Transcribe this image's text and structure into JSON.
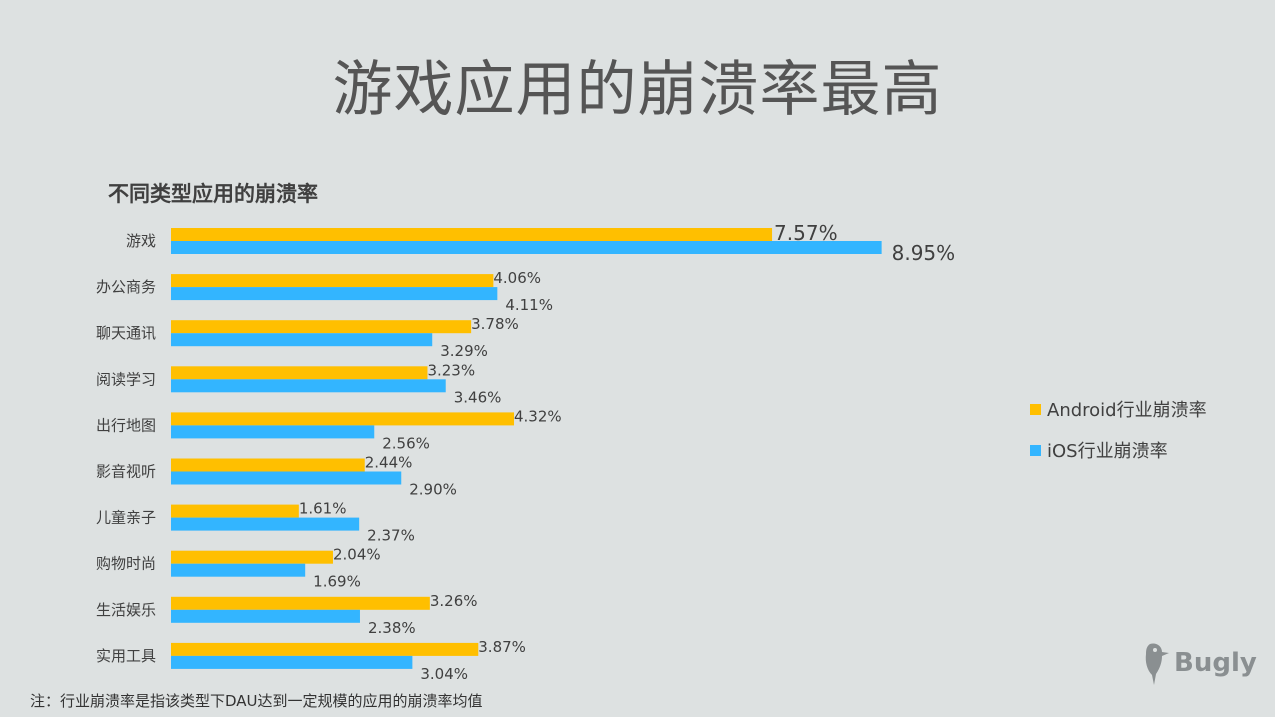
{
  "slide": {
    "title": "游戏应用的崩溃率最高",
    "footnote": "注：行业崩溃率是指该类型下DAU达到一定规模的应用的崩溃率均值",
    "logo_text": "Bugly"
  },
  "colors": {
    "android": "#ffbf00",
    "ios": "#33b5ff",
    "background": "#dde1e1"
  },
  "legend": [
    {
      "label": "Android行业崩溃率",
      "color": "#ffbf00"
    },
    {
      "label": "iOS行业崩溃率",
      "color": "#33b5ff"
    }
  ],
  "chart_data": {
    "type": "bar",
    "orientation": "horizontal",
    "title": "不同类型应用的崩溃率",
    "categories": [
      "游戏",
      "办公商务",
      "聊天通讯",
      "阅读学习",
      "出行地图",
      "影音视听",
      "儿童亲子",
      "购物时尚",
      "生活娱乐",
      "实用工具"
    ],
    "series": [
      {
        "name": "Android行业崩溃率",
        "color": "#ffbf00",
        "values": [
          7.57,
          4.06,
          3.78,
          3.23,
          4.32,
          2.44,
          1.61,
          2.04,
          3.26,
          3.87
        ],
        "labels": [
          "7.57%",
          "4.06%",
          "3.78%",
          "3.23%",
          "4.32%",
          "2.44%",
          "1.61%",
          "2.04%",
          "3.26%",
          "3.87%"
        ]
      },
      {
        "name": "iOS行业崩溃率",
        "color": "#33b5ff",
        "values": [
          8.95,
          4.11,
          3.29,
          3.46,
          2.56,
          2.9,
          2.37,
          1.69,
          2.38,
          3.04
        ],
        "labels": [
          "8.95%",
          "4.11%",
          "3.29%",
          "3.46%",
          "2.56%",
          "2.90%",
          "2.37%",
          "1.69%",
          "2.38%",
          "3.04%"
        ]
      }
    ],
    "xlim": [
      0,
      9
    ],
    "legend_position": "right",
    "grid": false
  }
}
